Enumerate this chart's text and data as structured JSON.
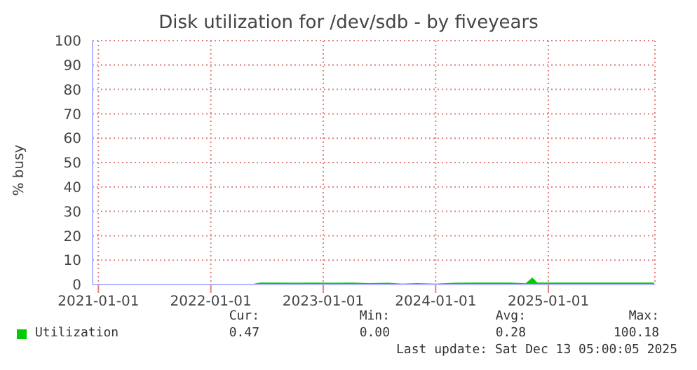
{
  "chart_data": {
    "type": "area",
    "title": "Disk utilization for /dev/sdb - by fiveyears",
    "ylabel": "% busy",
    "x": [
      "2020-12-20",
      "2021-02-01",
      "2021-04-01",
      "2021-06-01",
      "2021-08-01",
      "2021-10-01",
      "2021-12-01",
      "2022-02-01",
      "2022-04-01",
      "2022-05-20",
      "2022-06-10",
      "2022-08-01",
      "2022-10-01",
      "2022-12-01",
      "2023-02-01",
      "2023-04-01",
      "2023-06-01",
      "2023-08-01",
      "2023-09-15",
      "2023-11-01",
      "2024-01-01",
      "2024-03-01",
      "2024-05-01",
      "2024-07-01",
      "2024-09-01",
      "2024-10-20",
      "2024-11-10",
      "2024-11-25",
      "2025-01-01",
      "2025-03-01",
      "2025-05-01",
      "2025-07-01",
      "2025-09-01",
      "2025-11-01",
      "2025-12-10"
    ],
    "series": [
      {
        "name": "Utilization",
        "color": "#00cc00",
        "values": [
          0,
          0,
          0,
          0,
          0,
          0,
          0,
          0,
          0,
          0,
          0.5,
          0.5,
          0.4,
          0.5,
          0.4,
          0.5,
          0.3,
          0.4,
          0.1,
          0.3,
          0.1,
          0.4,
          0.5,
          0.5,
          0.5,
          0.2,
          2.5,
          0.5,
          0.5,
          0.5,
          0.5,
          0.5,
          0.5,
          0.5,
          0.47
        ]
      }
    ],
    "xlim": [
      "2020-12-13",
      "2025-12-13"
    ],
    "xticks": [
      "2021-01-01",
      "2022-01-01",
      "2023-01-01",
      "2024-01-01",
      "2025-01-01"
    ],
    "ylim": [
      0,
      100
    ],
    "yticks": [
      0,
      10,
      20,
      30,
      40,
      50,
      60,
      70,
      80,
      90,
      100
    ],
    "grid": true,
    "legend": "bottom",
    "annotations": [
      "Cur:",
      "Min:",
      "Avg:",
      "Max:",
      "0.47",
      "0.00",
      "0.28",
      "100.18",
      "Last update: Sat Dec 13 05:00:05 2025"
    ]
  }
}
